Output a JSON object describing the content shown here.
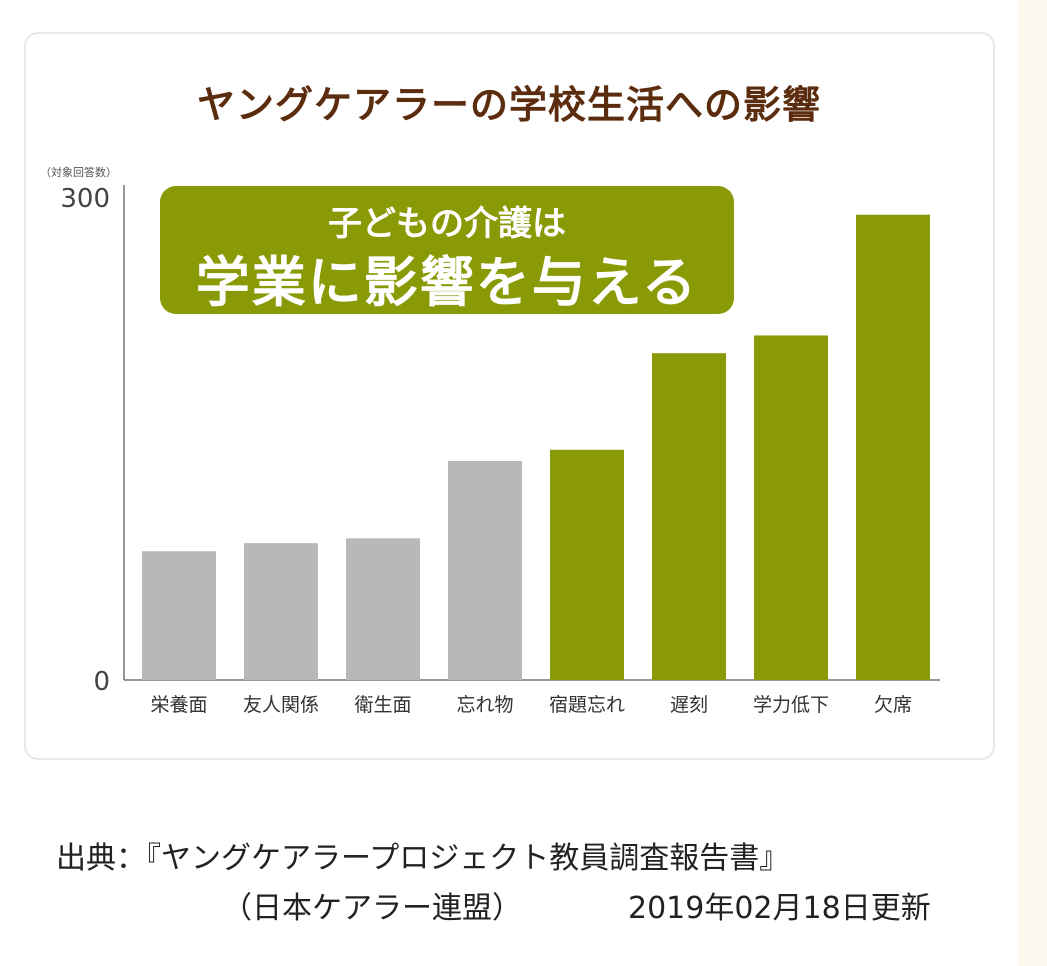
{
  "chart_data": {
    "type": "bar",
    "title": "ヤングケアラーの学校生活への影響",
    "ylabel": "（対象回答数）",
    "xlabel": "",
    "ylim": [
      0,
      300
    ],
    "yticks": [
      "0",
      "300"
    ],
    "categories": [
      "栄養面",
      "友人関係",
      "衛生面",
      "忘れ物",
      "宿題忘れ",
      "遅刻",
      "学力低下",
      "欠席"
    ],
    "values": [
      80,
      85,
      88,
      136,
      143,
      203,
      214,
      289
    ],
    "highlight": [
      false,
      false,
      false,
      false,
      true,
      true,
      true,
      true
    ],
    "colors": {
      "gray": "#b8b8b8",
      "green": "#8a9a06",
      "title": "#5b2d0e"
    },
    "annotation": {
      "line1": "子どもの介護は",
      "line2": "学業に影響を与える"
    },
    "grid": false
  },
  "source": {
    "line1": "出典：『ヤングケアラープロジェクト教員調査報告書』",
    "line2_org": "（日本ケアラー連盟）",
    "line2_date": "2019年02月18日更新"
  }
}
